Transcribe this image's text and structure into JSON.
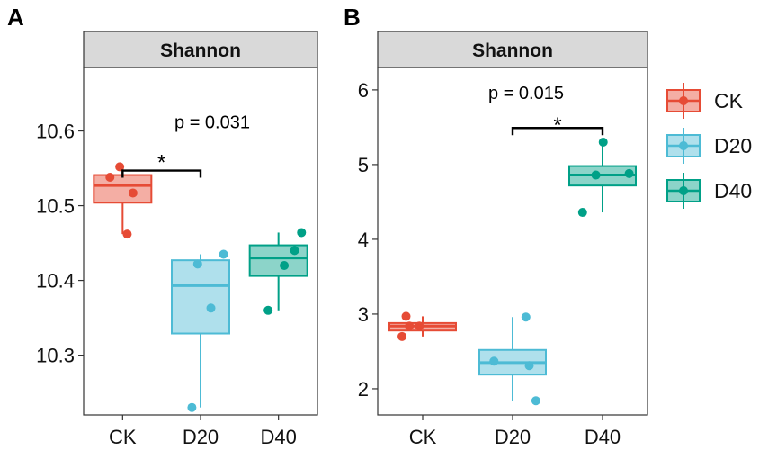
{
  "chart_data": {
    "type": "boxplot",
    "shared_legend": {
      "entries": [
        {
          "label": "CK",
          "color": "#E64B35"
        },
        {
          "label": "D20",
          "color": "#4DBBD5"
        },
        {
          "label": "D40",
          "color": "#00A087"
        }
      ]
    },
    "panels": [
      {
        "letter": "A",
        "strip_title": "Shannon",
        "categories": [
          "CK",
          "D20",
          "D40"
        ],
        "ylim": [
          10.22,
          10.685
        ],
        "yticks": [
          10.3,
          10.4,
          10.5,
          10.6
        ],
        "ytick_labels": [
          "10.3",
          "10.4",
          "10.5",
          "10.6"
        ],
        "boxes": [
          {
            "group": "CK",
            "min": 10.462,
            "q1": 10.504,
            "median": 10.527,
            "q3": 10.541,
            "max": 10.552
          },
          {
            "group": "D20",
            "min": 10.23,
            "q1": 10.329,
            "median": 10.393,
            "q3": 10.427,
            "max": 10.435
          },
          {
            "group": "D40",
            "min": 10.36,
            "q1": 10.406,
            "median": 10.43,
            "q3": 10.447,
            "max": 10.464
          }
        ],
        "points": [
          {
            "group": "CK",
            "values": [
              10.538,
              10.552,
              10.517,
              10.462
            ],
            "offsets": [
              -0.22,
              -0.05,
              0.18,
              0.08
            ]
          },
          {
            "group": "D20",
            "values": [
              10.23,
              10.422,
              10.363,
              10.435
            ],
            "offsets": [
              -0.15,
              -0.05,
              0.18,
              0.4
            ]
          },
          {
            "group": "D40",
            "values": [
              10.36,
              10.42,
              10.44,
              10.464
            ],
            "offsets": [
              -0.18,
              0.1,
              0.28,
              0.4
            ]
          }
        ],
        "comparison": {
          "from": "CK",
          "to": "D20",
          "bracket_y": 10.547,
          "label": "p = 0.031",
          "label_x": 1.65,
          "label_y": 10.612,
          "star": "*",
          "star_y": 10.565
        }
      },
      {
        "letter": "B",
        "strip_title": "Shannon",
        "categories": [
          "CK",
          "D20",
          "D40"
        ],
        "ylim": [
          1.65,
          6.3
        ],
        "yticks": [
          2,
          3,
          4,
          5,
          6
        ],
        "ytick_labels": [
          "2",
          "3",
          "4",
          "5",
          "6"
        ],
        "boxes": [
          {
            "group": "CK",
            "min": 2.7,
            "q1": 2.78,
            "median": 2.84,
            "q3": 2.88,
            "max": 2.97
          },
          {
            "group": "D20",
            "min": 1.84,
            "q1": 2.19,
            "median": 2.35,
            "q3": 2.52,
            "max": 2.96
          },
          {
            "group": "D40",
            "min": 4.36,
            "q1": 4.72,
            "median": 4.86,
            "q3": 4.98,
            "max": 5.3
          }
        ],
        "points": [
          {
            "group": "CK",
            "values": [
              2.7,
              2.84,
              2.97,
              2.84
            ],
            "offsets": [
              -0.31,
              -0.2,
              -0.25,
              -0.05
            ]
          },
          {
            "group": "D20",
            "values": [
              2.37,
              1.84,
              2.31,
              2.96
            ],
            "offsets": [
              -0.28,
              0.35,
              0.25,
              0.2
            ]
          },
          {
            "group": "D40",
            "values": [
              4.36,
              4.86,
              5.3,
              4.88
            ],
            "offsets": [
              -0.3,
              -0.1,
              0.01,
              0.4
            ]
          }
        ],
        "comparison": {
          "from": "D20",
          "to": "D40",
          "bracket_y": 5.49,
          "label": "p = 0.015",
          "label_x": 1.65,
          "label_y": 5.96,
          "star": "*",
          "star_y": 5.6
        }
      }
    ]
  }
}
